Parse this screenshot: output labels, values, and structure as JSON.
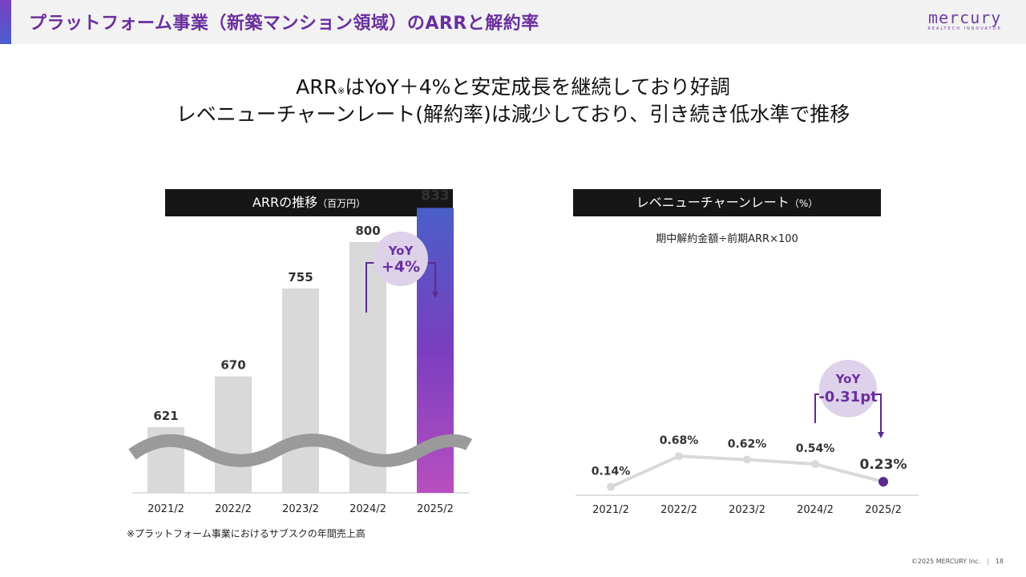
{
  "header": {
    "title": "プラットフォーム事業（新築マンション領域）のARRと解約率",
    "logo_word": "mercury",
    "logo_tagline": "REALTECH INNOVATOR"
  },
  "headline": {
    "line1_a": "ARR",
    "line1_mark": "※",
    "line1_b": "はYoY＋4%と安定成長を継続しており好調",
    "line2": "レベニューチャーンレート(解約率)は減少しており、引き続き低水準で推移"
  },
  "arr_panel": {
    "title": "ARRの推移",
    "unit": "（百万円）"
  },
  "churn_panel": {
    "title": "レベニューチャーンレート",
    "unit": "（%）",
    "formula": "期中解約金額÷前期ARR×100"
  },
  "footnote": "※プラットフォーム事業におけるサブスクの年間売上高",
  "copyright": "©2025 MERCURY Inc.",
  "page_number": "18",
  "colors": {
    "accent": "#6a2f9e",
    "bar_gray": "#d9d9d9",
    "bar_gradient_top": "#4a5fc8",
    "bar_gradient_bottom": "#b94fc0",
    "bubble": "#ddd2ea",
    "line_gray": "#d9d9d9",
    "highlight_point": "#5b2a8e"
  },
  "chart_data": [
    {
      "type": "bar",
      "title": "ARRの推移",
      "unit": "百万円",
      "categories": [
        "2021/2",
        "2022/2",
        "2023/2",
        "2024/2",
        "2025/2"
      ],
      "values": [
        621,
        670,
        755,
        800,
        833
      ],
      "axis_break": true,
      "highlight_index": 4,
      "annotation": {
        "line1": "YoY",
        "line2": "+4%",
        "from_index": 3,
        "to_index": 4
      }
    },
    {
      "type": "line",
      "title": "レベニューチャーンレート",
      "unit": "%",
      "categories": [
        "2021/2",
        "2022/2",
        "2023/2",
        "2024/2",
        "2025/2"
      ],
      "values": [
        0.14,
        0.68,
        0.62,
        0.54,
        0.23
      ],
      "labels": [
        "0.14%",
        "0.68%",
        "0.62%",
        "0.54%",
        "0.23%"
      ],
      "highlight_index": 4,
      "annotation": {
        "line1": "YoY",
        "line2": "-0.31pt",
        "from_index": 3,
        "to_index": 4
      }
    }
  ]
}
